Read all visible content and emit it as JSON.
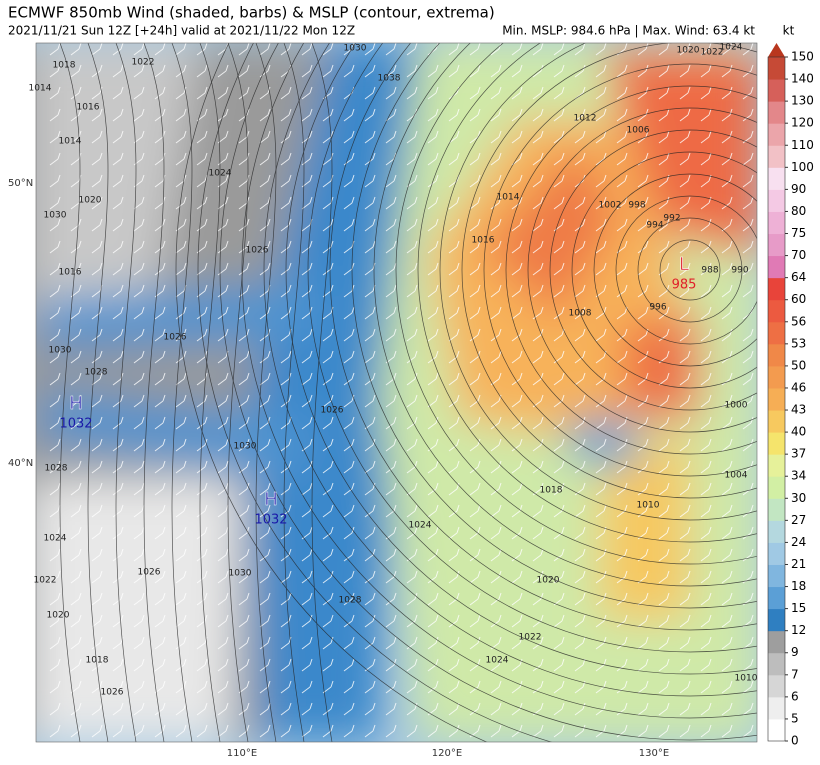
{
  "header": {
    "title": "ECMWF 850mb Wind (shaded, barbs) & MSLP (contour, extrema)",
    "subtitle": "2021/11/21 Sun 12Z [+24h] valid at 2021/11/22 Mon 12Z",
    "stats": "Min. MSLP: 984.6 hPa | Max. Wind: 63.4 kt"
  },
  "map": {
    "lat_labels": [
      "50°N",
      "40°N"
    ],
    "lon_labels": [
      "110°E",
      "120°E",
      "130°E"
    ],
    "extrema": [
      {
        "symbol": "H",
        "value": "1032"
      },
      {
        "symbol": "H",
        "value": "1032"
      },
      {
        "symbol": "L",
        "value": "985"
      }
    ],
    "contour_labels": [
      "1030",
      "1018",
      "1022",
      "1014",
      "1016",
      "1014",
      "1024",
      "1020",
      "1030",
      "1016",
      "1026",
      "1030",
      "1028",
      "1026",
      "1030",
      "1028",
      "1024",
      "1026",
      "1030",
      "1022",
      "1020",
      "1018",
      "1026",
      "1028",
      "1024",
      "1018",
      "1020",
      "1022",
      "1024",
      "1010",
      "1004",
      "1000",
      "1010",
      "996",
      "1008",
      "1016",
      "1014",
      "1002",
      "998",
      "994",
      "992",
      "988",
      "990",
      "1006",
      "1012",
      "1020",
      "1022",
      "1024",
      "1038",
      "1026"
    ]
  },
  "colorbar": {
    "unit": "kt",
    "ticks": [
      0,
      5,
      6,
      7,
      9,
      12,
      15,
      18,
      21,
      24,
      27,
      30,
      34,
      37,
      40,
      43,
      46,
      50,
      53,
      56,
      60,
      64,
      70,
      75,
      80,
      90,
      100,
      110,
      120,
      130,
      140,
      150
    ],
    "colors": [
      "#ffffff",
      "#eeeeee",
      "#d6d6d6",
      "#bdbdbd",
      "#9e9e9e",
      "#2f7fc1",
      "#5b9fd6",
      "#80b6df",
      "#a0c9e4",
      "#b4d8df",
      "#c2e6c2",
      "#d2efa4",
      "#e6f19a",
      "#f5e46c",
      "#f7c95f",
      "#f6ae55",
      "#f39b4f",
      "#f08848",
      "#ee6f44",
      "#ec5a40",
      "#e8443a",
      "#e07ab5",
      "#e79bc8",
      "#eeb1d6",
      "#f4c9e4",
      "#f8e0f0",
      "#f2c1c6",
      "#eba5aa",
      "#e3878a",
      "#d6605a",
      "#c64a36",
      "#b9371e"
    ]
  }
}
